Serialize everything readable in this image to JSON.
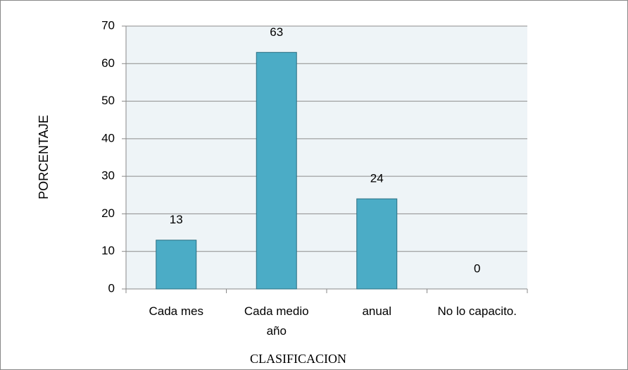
{
  "chart_data": {
    "type": "bar",
    "categories": [
      "Cada mes",
      "Cada medio año",
      "anual",
      "No lo capacito."
    ],
    "values": [
      13,
      63,
      24,
      0
    ],
    "color": "#4bacc6",
    "ylim": [
      0,
      70
    ],
    "yticks": [
      0,
      10,
      20,
      30,
      40,
      50,
      60,
      70
    ],
    "grid": true,
    "xlabel": "CLASIFICACION",
    "ylabel": "PORCENTAJE"
  }
}
